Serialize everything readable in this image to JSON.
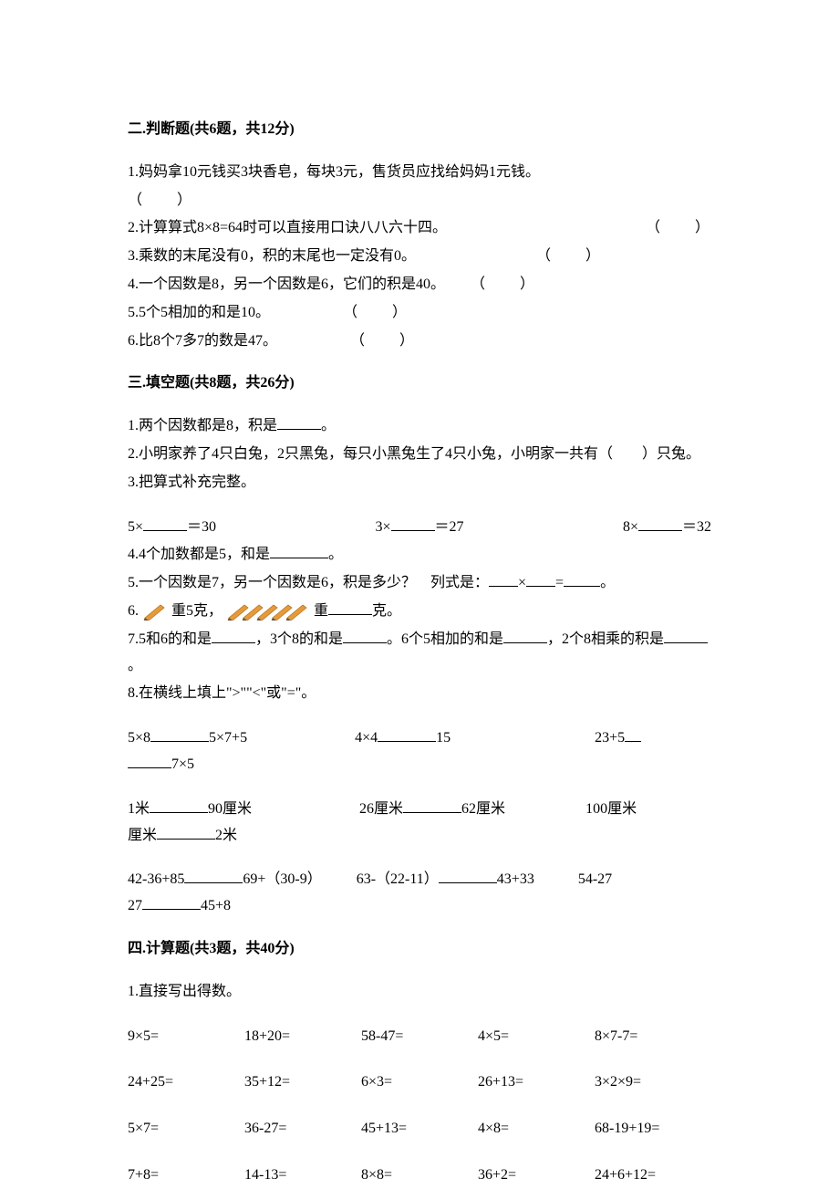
{
  "section2": {
    "title": "二.判断题(共6题，共12分)",
    "q1_pre": "1.妈妈拿10元钱买3块香皂，每块3元，售货员应找给妈妈1元钱。",
    "q1_paren": "（　　）",
    "q2_pre": "2.计算算式8×8=64时可以直接用口诀八八六十四。",
    "q2_paren": "（　　）",
    "q3_pre": "3.乘数的末尾没有0，积的末尾也一定没有0。",
    "q3_paren": "（　　）",
    "q4_pre": "4.一个因数是8，另一个因数是6，它们的积是40。",
    "q4_paren": "（　　）",
    "q5_pre": "5.5个5相加的和是10。",
    "q5_paren": "（　　）",
    "q6_pre": "6.比8个7多7的数是47。",
    "q6_paren": "（　　）"
  },
  "section3": {
    "title": "三.填空题(共8题，共26分)",
    "q1_a": "1.两个因数都是8，积是",
    "q1_b": "。",
    "q2_a": "2.小明家养了4只白兔，2只黑兔，每只小黑兔生了4只小兔，小明家一共有（　　）只兔。",
    "q3": "3.把算式补充完整。",
    "q3_r1a": "5×",
    "q3_r1b": "＝30",
    "q3_r2a": "3×",
    "q3_r2b": "＝27",
    "q3_r3a": "8×",
    "q3_r3b": "＝32",
    "q4_a": "4.4个加数都是5，和是",
    "q4_b": "。",
    "q5_a": "5.一个因数是7，另一个因数是6，积是多少？　列式是：",
    "q5_b": "×",
    "q5_c": "=",
    "q5_d": "。",
    "q6_a": "6.",
    "q6_b": "重5克，",
    "q6_c": "重",
    "q6_d": "克。",
    "q7_a": "7.5和6的和是",
    "q7_b": "，3个8的和是",
    "q7_c": "。6个5相加的和是",
    "q7_d": "，2个8相乘的积是",
    "q7_e": "。",
    "q8": "8.在横线上填上\">\"\"<\"或\"=\"。",
    "q8_r1_1a": "5×8",
    "q8_r1_1b": "5×7+5",
    "q8_r1_2a": "4×4",
    "q8_r1_2b": "15",
    "q8_r1_3a": "23+5",
    "q8_r1_3b": "7×5",
    "q8_r2_1a": "1米",
    "q8_r2_1b": "90厘米",
    "q8_r2_2a": "26厘米",
    "q8_r2_2b": "62厘米",
    "q8_r2_3a": "100厘米",
    "q8_r2_3b": "2米",
    "q8_r3_1a": "42-36+85",
    "q8_r3_1b": "69+（30-9）",
    "q8_r3_2a": "63-（22-11）",
    "q8_r3_2b": "43+33",
    "q8_r3_3a": "54-27",
    "q8_r3_3b": "45+8"
  },
  "section4": {
    "title": "四.计算题(共3题，共40分)",
    "q1": "1.直接写出得数。",
    "rows": [
      [
        "9×5=",
        "18+20=",
        "58-47=",
        "4×5=",
        "8×7-7="
      ],
      [
        "24+25=",
        "35+12=",
        "6×3=",
        "26+13=",
        "3×2×9="
      ],
      [
        "5×7=",
        "36-27=",
        "45+13=",
        "4×8=",
        "68-19+19="
      ],
      [
        "7+8=",
        "14-13=",
        "8×8=",
        "36+2=",
        "24+6+12="
      ]
    ]
  },
  "style": {
    "pen_color": "#e69a3a",
    "text_color": "#000000",
    "bg": "#ffffff"
  }
}
